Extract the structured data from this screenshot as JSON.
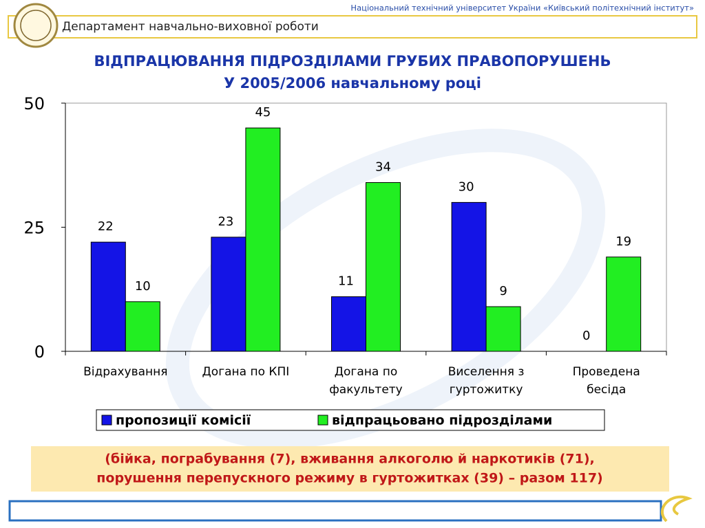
{
  "header": {
    "university": "Національний технічний університет України «Київський політехнічний інститут»",
    "department": "Департамент навчально-виховної роботи"
  },
  "chart_data": {
    "type": "bar",
    "title": "ВІДПРАЦЮВАННЯ ПІДРОЗДІЛАМИ ГРУБИХ ПРАВОПОРУШЕНЬ",
    "subtitle": "У 2005/2006 навчальному році",
    "categories": [
      [
        "Відрахування"
      ],
      [
        "Догана по КПІ"
      ],
      [
        "Догана по",
        "факультету"
      ],
      [
        "Виселення з",
        "гуртожитку"
      ],
      [
        "Проведена",
        "бесіда"
      ]
    ],
    "series": [
      {
        "name": "пропозиції комісії",
        "color": "#1414e6",
        "values": [
          22,
          23,
          11,
          30,
          0
        ]
      },
      {
        "name": "відпрацьовано підрозділами",
        "color": "#22ee22",
        "values": [
          10,
          45,
          34,
          9,
          19
        ]
      }
    ],
    "ylim": [
      0,
      50
    ],
    "yticks": [
      0,
      25,
      50
    ],
    "grid": false,
    "legend": "bottom"
  },
  "footnote": [
    "(бійка, пограбування (7), вживання алкоголю й наркотиків (71),",
    "порушення перепускного режиму в гуртожитках (39) – разом 117)"
  ]
}
